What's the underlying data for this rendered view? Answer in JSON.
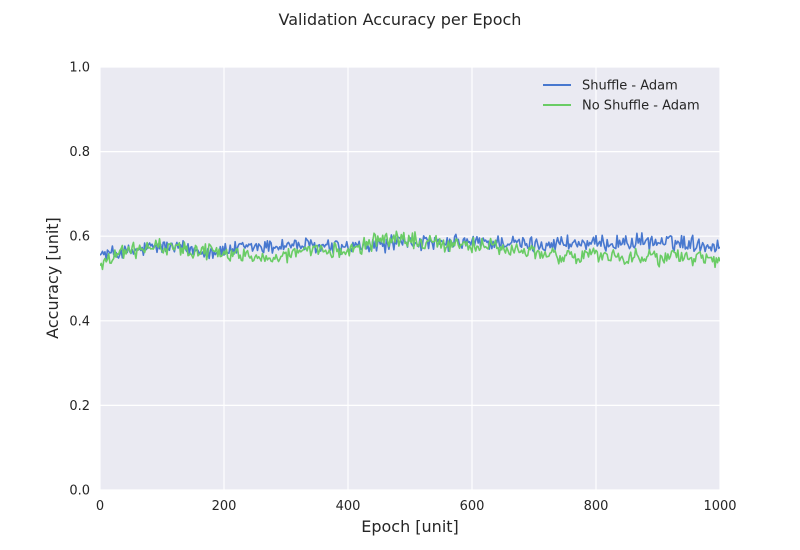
{
  "chart_data": {
    "type": "line",
    "title": "Validation Accuracy per Epoch",
    "xlabel": "Epoch [unit]",
    "ylabel": "Accuracy [unit]",
    "xlim": [
      0,
      1000
    ],
    "ylim": [
      0.0,
      1.0
    ],
    "xticks": [
      "0",
      "200",
      "400",
      "600",
      "800",
      "1000"
    ],
    "yticks": [
      "0.0",
      "0.2",
      "0.4",
      "0.6",
      "0.8",
      "1.0"
    ],
    "grid": true,
    "legend_position": "top-right",
    "style": {
      "plot_background": "#eaeaf2",
      "grid_color": "#ffffff"
    },
    "series": [
      {
        "name": "Shuffle - Adam",
        "color": "#4878cf",
        "x": [
          0,
          25,
          50,
          75,
          100,
          125,
          150,
          175,
          200,
          225,
          250,
          275,
          300,
          325,
          350,
          375,
          400,
          425,
          450,
          475,
          500,
          525,
          550,
          575,
          600,
          625,
          650,
          675,
          700,
          725,
          750,
          775,
          800,
          825,
          850,
          875,
          900,
          925,
          950,
          975,
          1000
        ],
        "y": [
          0.555,
          0.56,
          0.562,
          0.57,
          0.575,
          0.572,
          0.568,
          0.565,
          0.565,
          0.57,
          0.575,
          0.575,
          0.58,
          0.578,
          0.575,
          0.575,
          0.572,
          0.575,
          0.578,
          0.585,
          0.585,
          0.585,
          0.58,
          0.585,
          0.585,
          0.585,
          0.585,
          0.582,
          0.58,
          0.582,
          0.585,
          0.582,
          0.58,
          0.585,
          0.585,
          0.588,
          0.585,
          0.585,
          0.585,
          0.58,
          0.575
        ]
      },
      {
        "name": "No Shuffle - Adam",
        "color": "#6acc65",
        "x": [
          0,
          25,
          50,
          75,
          100,
          125,
          150,
          175,
          200,
          225,
          250,
          275,
          300,
          325,
          350,
          375,
          400,
          425,
          450,
          475,
          500,
          525,
          550,
          575,
          600,
          625,
          650,
          675,
          700,
          725,
          750,
          775,
          800,
          825,
          850,
          875,
          900,
          925,
          950,
          975,
          1000
        ],
        "y": [
          0.53,
          0.558,
          0.565,
          0.572,
          0.575,
          0.57,
          0.568,
          0.565,
          0.56,
          0.555,
          0.555,
          0.55,
          0.555,
          0.56,
          0.562,
          0.565,
          0.57,
          0.58,
          0.59,
          0.595,
          0.59,
          0.585,
          0.58,
          0.585,
          0.58,
          0.575,
          0.57,
          0.565,
          0.56,
          0.555,
          0.553,
          0.555,
          0.553,
          0.555,
          0.55,
          0.555,
          0.548,
          0.552,
          0.548,
          0.545,
          0.54
        ]
      }
    ]
  }
}
